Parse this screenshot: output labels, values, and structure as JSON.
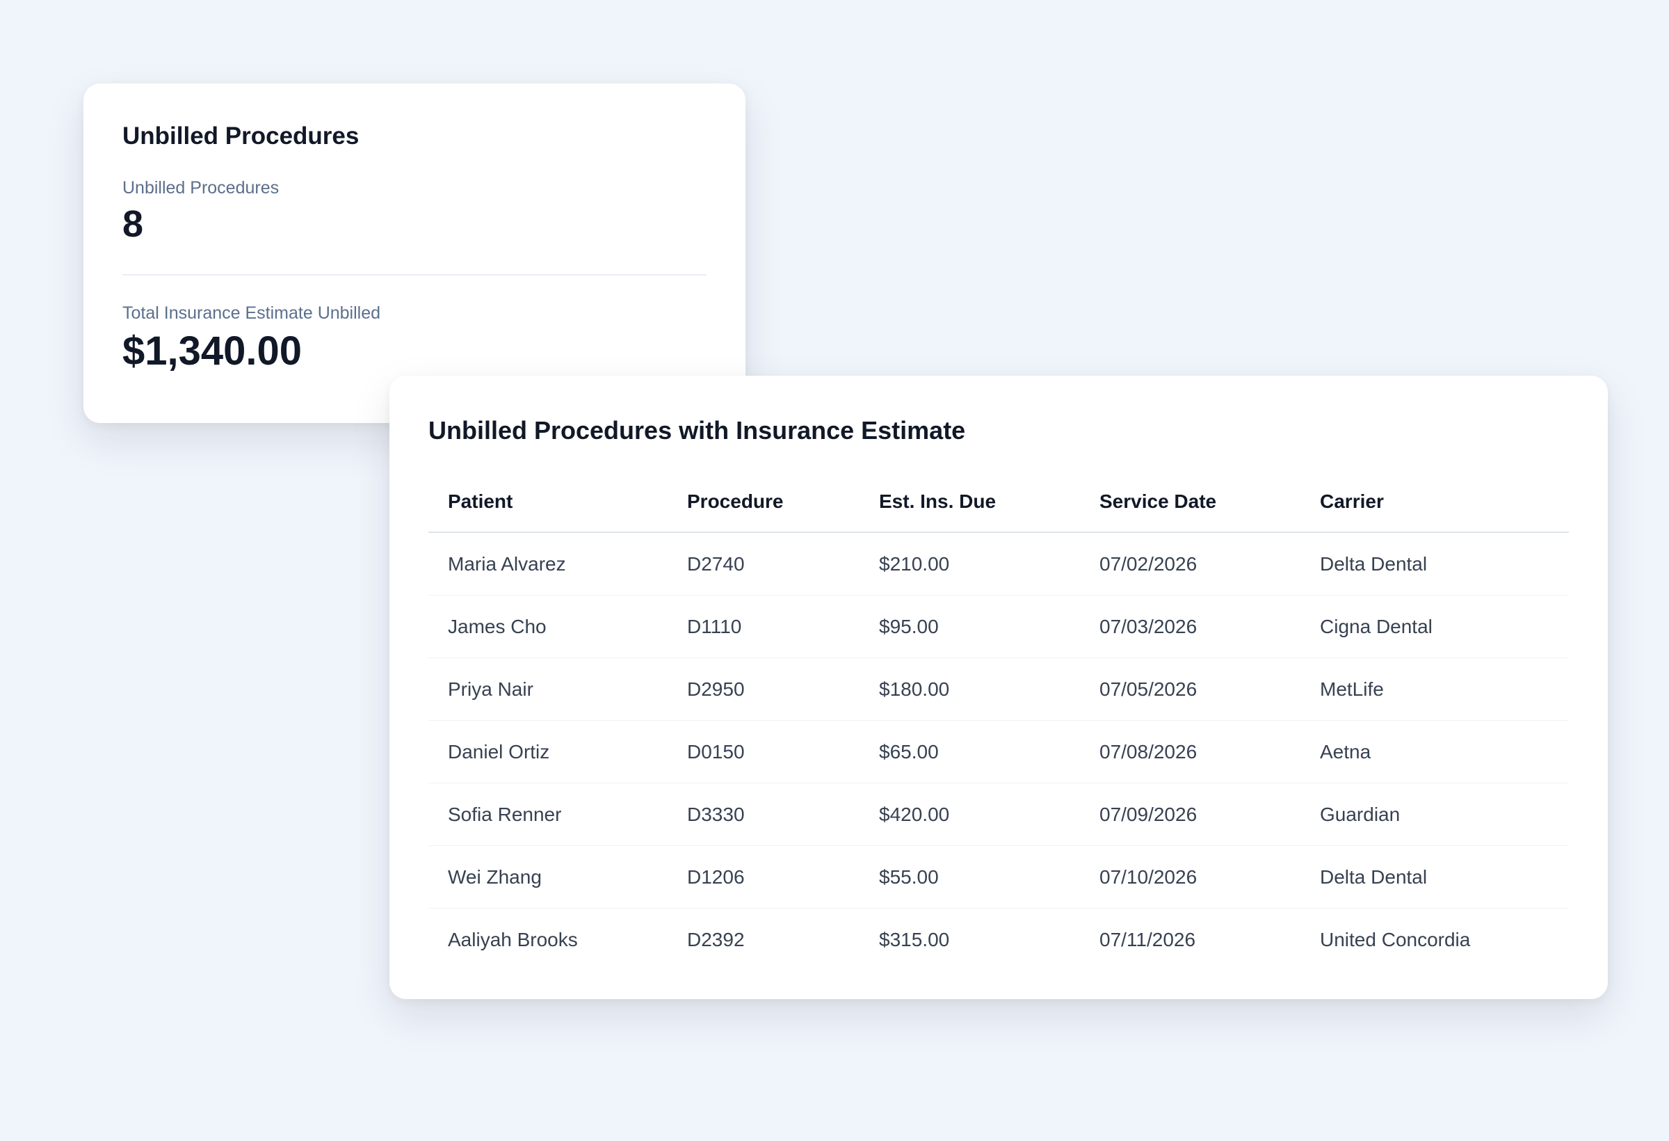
{
  "summary": {
    "title": "Unbilled Procedures",
    "metrics": [
      {
        "label": "Unbilled Procedures",
        "value": "8"
      },
      {
        "label": "Total Insurance Estimate Unbilled",
        "value": "$1,340.00"
      }
    ]
  },
  "table": {
    "title": "Unbilled Procedures with Insurance Estimate",
    "columns": [
      "Patient",
      "Procedure",
      "Est. Ins. Due",
      "Service Date",
      "Carrier"
    ],
    "rows": [
      [
        "Maria Alvarez",
        "D2740",
        "$210.00",
        "07/02/2026",
        "Delta Dental"
      ],
      [
        "James Cho",
        "D1110",
        "$95.00",
        "07/03/2026",
        "Cigna Dental"
      ],
      [
        "Priya Nair",
        "D2950",
        "$180.00",
        "07/05/2026",
        "MetLife"
      ],
      [
        "Daniel Ortiz",
        "D0150",
        "$65.00",
        "07/08/2026",
        "Aetna"
      ],
      [
        "Sofia Renner",
        "D3330",
        "$420.00",
        "07/09/2026",
        "Guardian"
      ],
      [
        "Wei Zhang",
        "D1206",
        "$55.00",
        "07/10/2026",
        "Delta Dental"
      ],
      [
        "Aaliyah Brooks",
        "D2392",
        "$315.00",
        "07/11/2026",
        "United Concordia"
      ]
    ]
  }
}
